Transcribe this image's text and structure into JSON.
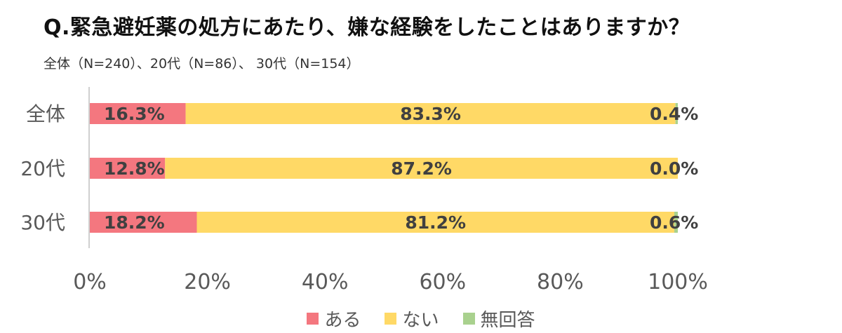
{
  "title": "Q.緊急避妊薬の処方にあたり、嫌な経験をしたことはありますか？",
  "subtitle": "全体（N=240）、20代（N=86）、 30代（N=154）",
  "chart_data": {
    "type": "bar",
    "orientation": "horizontal",
    "stacked": true,
    "categories": [
      "全体",
      "20代",
      "30代"
    ],
    "series": [
      {
        "name": "ある",
        "color": "#F4777F",
        "values": [
          16.3,
          12.8,
          18.2
        ],
        "labels": [
          "16.3%",
          "12.8%",
          "18.2%"
        ]
      },
      {
        "name": "ない",
        "color": "#FFD966",
        "values": [
          83.3,
          87.2,
          81.2
        ],
        "labels": [
          "83.3%",
          "87.2%",
          "81.2%"
        ]
      },
      {
        "name": "無回答",
        "color": "#A9D18E",
        "values": [
          0.4,
          0.0,
          0.6
        ],
        "labels": [
          "0.4%",
          "0.0%",
          "0.6%"
        ]
      }
    ],
    "xlim": [
      0,
      100
    ],
    "xticks": [
      "0%",
      "20%",
      "40%",
      "60%",
      "80%",
      "100%"
    ],
    "grid": false,
    "legend_position": "bottom"
  }
}
